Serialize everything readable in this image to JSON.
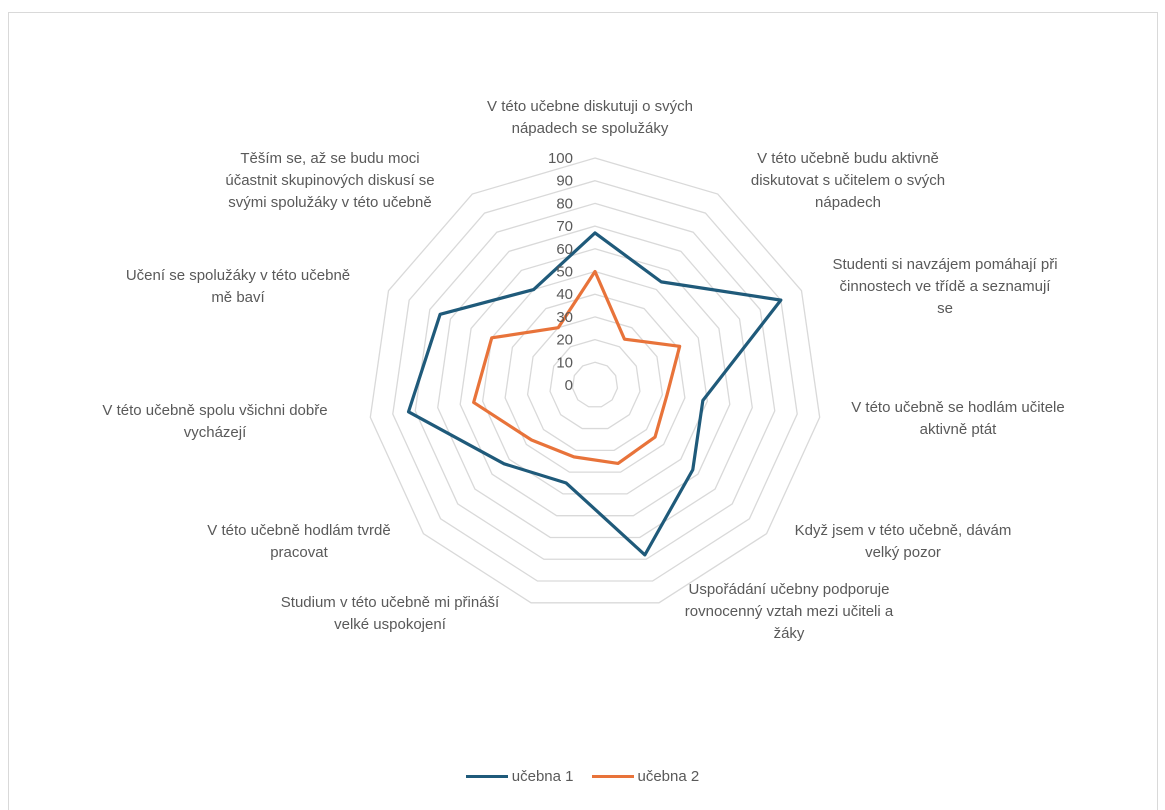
{
  "chart_data": {
    "type": "radar",
    "title": "",
    "categories": [
      "V této učebne diskutuji o svých nápadech se spolužáky",
      "V této učebně budu aktivně diskutovat s učitelem o svých nápadech",
      "Studenti si navzájem pomáhají při činnostech ve třídě a seznamují se",
      "V této učebně se hodlám učitele aktivně ptát",
      "Když jsem v této učebně, dávám velký pozor",
      "Uspořádání učebny podporuje rovnocenný vztah mezi učiteli a žáky",
      "Studium v této učebně mi přináší velké uspokojení",
      "V této učebně hodlám tvrdě pracovat",
      "V této učebně spolu všichni dobře vycházejí",
      "Učení se spolužáky v této učebně mě baví",
      "Těším se, až se budu moci účastnit skupinových diskusí se svými spolužáky v této učebně"
    ],
    "series": [
      {
        "name": "učebna 1",
        "color": "#1f5a7a",
        "values": [
          67,
          54,
          90,
          48,
          57,
          78,
          45,
          53,
          83,
          75,
          50
        ]
      },
      {
        "name": "učebna 2",
        "color": "#e8733a",
        "values": [
          50,
          24,
          41,
          32,
          35,
          36,
          33,
          37,
          54,
          50,
          30
        ]
      }
    ],
    "rlim": [
      0,
      100
    ],
    "ticks": [
      0,
      10,
      20,
      30,
      40,
      50,
      60,
      70,
      80,
      90,
      100
    ],
    "legend_position": "bottom",
    "grid": true
  }
}
